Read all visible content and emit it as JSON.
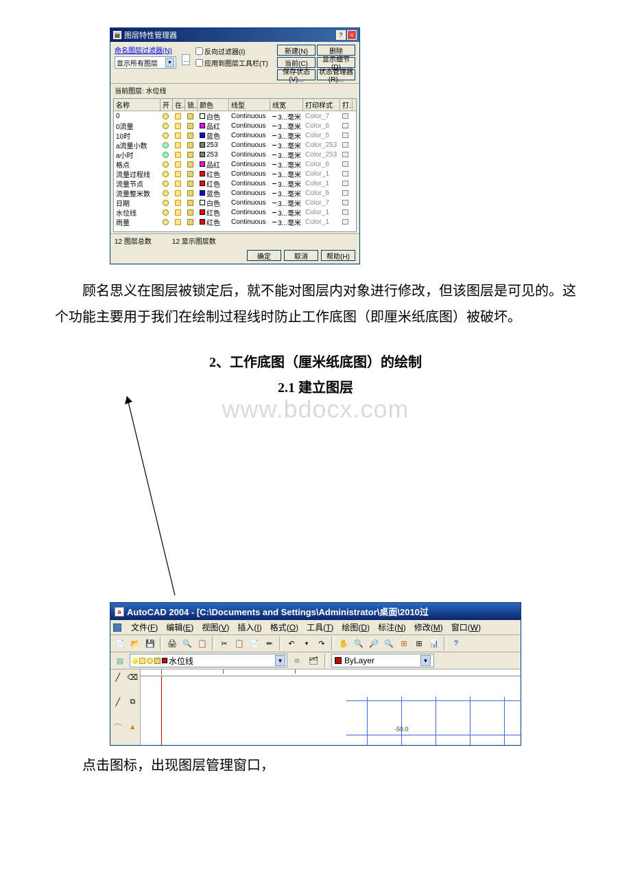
{
  "layerDialog": {
    "title": "图层特性管理器",
    "filterLink": "命名图层过滤器(N)",
    "filterValue": "显示所有图层",
    "invertFilter": "反向过滤器(I)",
    "applyToolbar": "应用到图层工具栏(T)",
    "btnNew": "新建(N)",
    "btnDelete": "删除",
    "btnCurrent": "当前(C)",
    "btnDetails": "显示细节(D)",
    "btnSaveState": "保存状态(V)...",
    "btnStateManager": "状态管理器(R)...",
    "currentLayerLabel": "当前图层:",
    "currentLayerValue": "水位线",
    "headers": {
      "name": "名称",
      "on": "开",
      "freeze": "在...",
      "lock": "锁...",
      "color": "颜色",
      "linetype": "线型",
      "lineweight": "线宽",
      "plotstyle": "打印样式",
      "plot": "打..."
    },
    "layers": [
      {
        "name": "0",
        "bulb": "#ffe680",
        "colorHex": "#ffffff",
        "color": "白色",
        "plot": "Color_7"
      },
      {
        "name": "0流量",
        "bulb": "#ffe680",
        "colorHex": "#ff00ff",
        "color": "品红",
        "plot": "Color_6"
      },
      {
        "name": "10时",
        "bulb": "#ffe680",
        "colorHex": "#0000ff",
        "color": "蓝色",
        "plot": "Color_5"
      },
      {
        "name": "a流量小数",
        "bulb": "#80ffff",
        "colorHex": "#808080",
        "color": "253",
        "plot": "Color_253"
      },
      {
        "name": "a小时",
        "bulb": "#80ffff",
        "colorHex": "#808080",
        "color": "253",
        "plot": "Color_253"
      },
      {
        "name": "格点",
        "bulb": "#ffe680",
        "colorHex": "#ff00ff",
        "color": "品红",
        "plot": "Color_6"
      },
      {
        "name": "流量过程线",
        "bulb": "#ffe680",
        "colorHex": "#ff0000",
        "color": "红色",
        "plot": "Color_1"
      },
      {
        "name": "流量节点",
        "bulb": "#ffe680",
        "colorHex": "#ff0000",
        "color": "红色",
        "plot": "Color_1"
      },
      {
        "name": "流量整米数",
        "bulb": "#ffe680",
        "colorHex": "#0000ff",
        "color": "蓝色",
        "plot": "Color_5"
      },
      {
        "name": "日期",
        "bulb": "#ffe680",
        "colorHex": "#ffffff",
        "color": "白色",
        "plot": "Color_7"
      },
      {
        "name": "水位线",
        "bulb": "#ffe680",
        "colorHex": "#ff0000",
        "color": "红色",
        "plot": "Color_1"
      },
      {
        "name": "雨量",
        "bulb": "#ffe680",
        "colorHex": "#ff0000",
        "color": "红色",
        "plot": "Color_1"
      }
    ],
    "linetype": "Continuous",
    "lineweight": "—— 3...毫米",
    "totalLayers": "12 图层总数",
    "shownLayers": "12 显示图层数",
    "btnOk": "确定",
    "btnCancel": "取消",
    "btnHelp": "帮助(H)"
  },
  "doc": {
    "paragraph1": "顾名思义在图层被锁定后，就不能对图层内对象进行修改，但该图层是可见的。这个功能主要用于我们在绘制过程线时防止工作底图（即厘米纸底图）被破坏。",
    "heading1": "2、工作底图（厘米纸底图）的绘制",
    "heading2": "2.1 建立图层",
    "watermark": "www.bdocx.com",
    "paragraph2": "点击图标，出现图层管理窗口，"
  },
  "acad": {
    "title": "AutoCAD 2004 - [C:\\Documents and Settings\\Administrator\\桌面\\2010过",
    "menu": [
      {
        "label": "文件",
        "key": "F"
      },
      {
        "label": "编辑",
        "key": "E"
      },
      {
        "label": "视图",
        "key": "V"
      },
      {
        "label": "插入",
        "key": "I"
      },
      {
        "label": "格式",
        "key": "O"
      },
      {
        "label": "工具",
        "key": "T"
      },
      {
        "label": "绘图",
        "key": "D"
      },
      {
        "label": "标注",
        "key": "N"
      },
      {
        "label": "修改",
        "key": "M"
      },
      {
        "label": "窗口",
        "key": "W"
      }
    ],
    "layerComboValue": "水位线",
    "byLayerValue": "ByLayer",
    "coordLabel": "-50.0"
  },
  "colors": {
    "titleBarStart": "#0a246a",
    "titleBarEnd": "#3a6ea5",
    "dialogBg": "#ece9d8",
    "gridBlue": "#4169e1",
    "redMarker": "#c00000"
  }
}
